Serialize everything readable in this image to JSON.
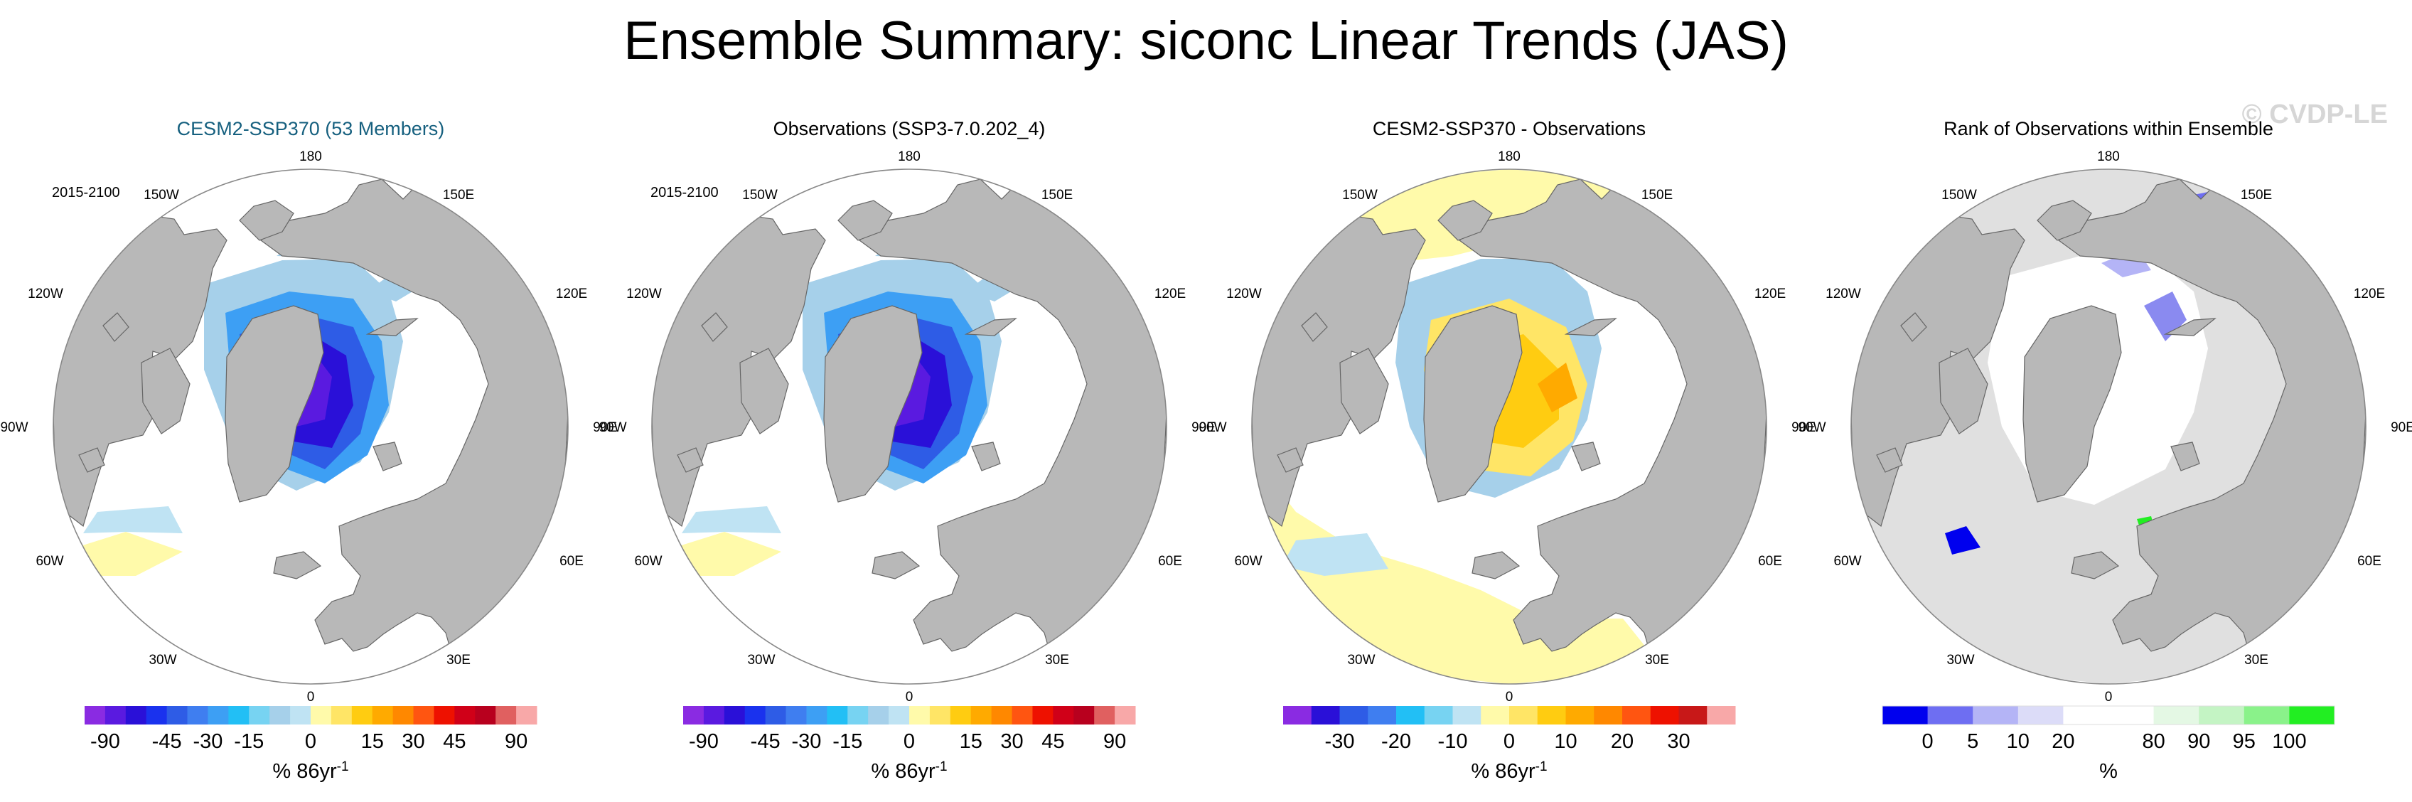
{
  "page_title": "Ensemble Summary: siconc Linear Trends (JAS)",
  "watermark": "© CVDP-LE",
  "colors": {
    "land": "#b8b8b8",
    "ocean_bg": "#ffffff",
    "coast": "#666666",
    "panel1_title": "#16607f"
  },
  "chart_data": [
    {
      "type": "polar-map",
      "title": "CESM2-SSP370 (53 Members)",
      "period": "2015-2100",
      "longitude_labels": [
        "180",
        "150E",
        "120E",
        "90E",
        "60E",
        "30E",
        "0",
        "30W",
        "60W",
        "90W",
        "120W",
        "150W"
      ],
      "legend": {
        "colors": [
          "#8a2be2",
          "#5a1ae0",
          "#2a10d8",
          "#1a32ee",
          "#2e5ce6",
          "#3f7ef0",
          "#3d9ff4",
          "#22bff5",
          "#77d3f2",
          "#a6d0ea",
          "#bfe3f3",
          "#fffaaa",
          "#ffe566",
          "#ffcc11",
          "#ffaa00",
          "#ff8800",
          "#ff5511",
          "#ee1100",
          "#d00018",
          "#b8001e",
          "#e06060",
          "#f8a8a8"
        ],
        "tick_labels": [
          "-90",
          "-45",
          "-30",
          "-15",
          "0",
          "15",
          "30",
          "45",
          "90"
        ],
        "tick_positions": [
          1,
          4,
          6,
          8,
          11,
          14,
          16,
          18,
          21
        ],
        "units": "% 86yr",
        "units_exponent": "-1"
      }
    },
    {
      "type": "polar-map",
      "title": "Observations (SSP3-7.0.202_4)",
      "period": "2015-2100",
      "longitude_labels": [
        "180",
        "150E",
        "120E",
        "90E",
        "60E",
        "30E",
        "0",
        "30W",
        "60W",
        "90W",
        "120W",
        "150W"
      ],
      "legend": {
        "colors": [
          "#8a2be2",
          "#5a1ae0",
          "#2a10d8",
          "#1a32ee",
          "#2e5ce6",
          "#3f7ef0",
          "#3d9ff4",
          "#22bff5",
          "#77d3f2",
          "#a6d0ea",
          "#bfe3f3",
          "#fffaaa",
          "#ffe566",
          "#ffcc11",
          "#ffaa00",
          "#ff8800",
          "#ff5511",
          "#ee1100",
          "#d00018",
          "#b8001e",
          "#e06060",
          "#f8a8a8"
        ],
        "tick_labels": [
          "-90",
          "-45",
          "-30",
          "-15",
          "0",
          "15",
          "30",
          "45",
          "90"
        ],
        "tick_positions": [
          1,
          4,
          6,
          8,
          11,
          14,
          16,
          18,
          21
        ],
        "units": "% 86yr",
        "units_exponent": "-1"
      }
    },
    {
      "type": "polar-map",
      "title": "CESM2-SSP370 - Observations",
      "period": "",
      "longitude_labels": [
        "180",
        "150E",
        "120E",
        "90E",
        "60E",
        "30E",
        "0",
        "30W",
        "60W",
        "90W",
        "120W",
        "150W"
      ],
      "legend": {
        "colors": [
          "#8a2be2",
          "#2a10d8",
          "#2e5ce6",
          "#3f7ef0",
          "#22bff5",
          "#77d3f2",
          "#bfe3f3",
          "#fffaaa",
          "#ffe566",
          "#ffcc11",
          "#ffaa00",
          "#ff8800",
          "#ff5511",
          "#ee1100",
          "#c81818",
          "#f8a8a8"
        ],
        "tick_labels": [
          "-30",
          "-20",
          "-10",
          "0",
          "10",
          "20",
          "30"
        ],
        "tick_positions": [
          2,
          4,
          6,
          8,
          10,
          12,
          14
        ],
        "units": "% 86yr",
        "units_exponent": "-1"
      }
    },
    {
      "type": "polar-map",
      "title": "Rank of Observations within Ensemble",
      "period": "",
      "longitude_labels": [
        "180",
        "150E",
        "120E",
        "90E",
        "60E",
        "30E",
        "0",
        "30W",
        "60W",
        "90W",
        "120W",
        "150W"
      ],
      "legend": {
        "colors": [
          "#0000ee",
          "#6e6ef2",
          "#b4b4f6",
          "#dcdcf8",
          "#ffffff",
          "#ffffff",
          "#e4f8e4",
          "#c4f4c4",
          "#8af28a",
          "#22ee22"
        ],
        "tick_labels": [
          "0",
          "5",
          "10",
          "20",
          "80",
          "90",
          "95",
          "100"
        ],
        "tick_positions": [
          1,
          2,
          3,
          4,
          6,
          7,
          8,
          9
        ],
        "units": "%",
        "units_exponent": ""
      }
    }
  ]
}
